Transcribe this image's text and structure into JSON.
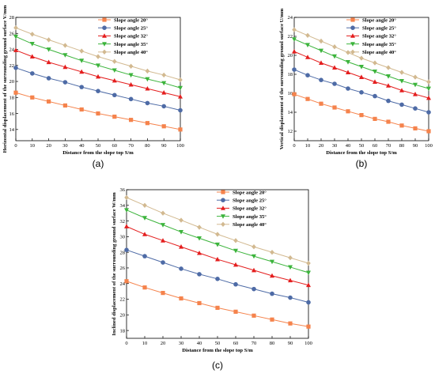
{
  "colors": {
    "slope20": "#F5834C",
    "slope25": "#4E6BA6",
    "slope32": "#E41E1E",
    "slope35": "#3CB43C",
    "slope40": "#D2B990"
  },
  "chart_data": [
    {
      "panel_label": "(a)",
      "type": "line",
      "xlabel": "Distance from the slope top S/m",
      "ylabel": "Horizontal displacement of the surrounding ground surface V/mm",
      "xlim": [
        0,
        100
      ],
      "ylim": [
        12.6,
        28
      ],
      "xticks": [
        "0",
        "10",
        "20",
        "30",
        "40",
        "50",
        "60",
        "70",
        "80",
        "90",
        "100"
      ],
      "yticks": [
        "14",
        "16",
        "18",
        "20",
        "22",
        "24",
        "26",
        "28"
      ],
      "grid": false,
      "legend_position": "top-right",
      "x": [
        0,
        10,
        20,
        30,
        40,
        50,
        60,
        70,
        80,
        90,
        100
      ],
      "series": [
        {
          "name": "Slope angle 20°",
          "marker": "square",
          "values": [
            18.6,
            18.0,
            17.5,
            17.0,
            16.5,
            16.0,
            15.6,
            15.2,
            14.8,
            14.4,
            14.0
          ]
        },
        {
          "name": "Slope angle 25°",
          "marker": "circle",
          "values": [
            21.7,
            21.0,
            20.4,
            19.9,
            19.3,
            18.8,
            18.3,
            17.8,
            17.3,
            16.9,
            16.4
          ]
        },
        {
          "name": "Slope angle 32°",
          "marker": "triangle-up",
          "values": [
            23.9,
            23.1,
            22.4,
            21.8,
            21.2,
            20.6,
            20.1,
            19.6,
            19.1,
            18.6,
            18.1
          ]
        },
        {
          "name": "Slope angle 35°",
          "marker": "triangle-down",
          "values": [
            25.6,
            24.7,
            24.0,
            23.3,
            22.6,
            22.0,
            21.4,
            20.8,
            20.3,
            19.8,
            19.2
          ]
        },
        {
          "name": "Slope angle 40°",
          "marker": "diamond",
          "values": [
            26.7,
            25.9,
            25.2,
            24.5,
            23.8,
            23.1,
            22.5,
            21.9,
            21.3,
            20.8,
            20.2
          ]
        }
      ]
    },
    {
      "panel_label": "(b)",
      "type": "line",
      "xlabel": "Distance from the slope top S/m",
      "ylabel": "Vertical displacement of the surrounding ground surface U/mm",
      "xlim": [
        0,
        100
      ],
      "ylim": [
        11,
        24
      ],
      "xticks": [
        "0",
        "10",
        "20",
        "30",
        "40",
        "50",
        "60",
        "70",
        "80",
        "90",
        "100"
      ],
      "yticks": [
        "12",
        "14",
        "16",
        "18",
        "20",
        "22",
        "24"
      ],
      "grid": false,
      "legend_position": "top-right",
      "x": [
        0,
        10,
        20,
        30,
        40,
        50,
        60,
        70,
        80,
        90,
        100
      ],
      "series": [
        {
          "name": "Slope angle 20°",
          "marker": "square",
          "values": [
            15.9,
            15.4,
            14.9,
            14.5,
            14.1,
            13.7,
            13.3,
            13.0,
            12.6,
            12.3,
            12.0
          ]
        },
        {
          "name": "Slope angle 25°",
          "marker": "circle",
          "values": [
            18.5,
            17.9,
            17.4,
            17.0,
            16.5,
            16.1,
            15.7,
            15.2,
            14.8,
            14.4,
            14.0
          ]
        },
        {
          "name": "Slope angle 32°",
          "marker": "triangle-up",
          "values": [
            20.4,
            19.8,
            19.2,
            18.7,
            18.2,
            17.7,
            17.2,
            16.8,
            16.3,
            15.9,
            15.5
          ]
        },
        {
          "name": "Slope angle 35°",
          "marker": "triangle-down",
          "values": [
            21.7,
            21.1,
            20.5,
            19.9,
            19.3,
            18.8,
            18.3,
            17.8,
            17.3,
            16.9,
            16.5
          ]
        },
        {
          "name": "Slope angle 40°",
          "marker": "diamond",
          "values": [
            22.7,
            22.1,
            21.5,
            20.9,
            20.3,
            19.7,
            19.2,
            18.7,
            18.2,
            17.7,
            17.2
          ]
        }
      ]
    },
    {
      "panel_label": "(c)",
      "type": "line",
      "xlabel": "Distance from the slope top S/m",
      "ylabel": "Inclined displacement of the surrounding ground surface W/mm",
      "xlim": [
        0,
        100
      ],
      "ylim": [
        17,
        36
      ],
      "xticks": [
        "0",
        "10",
        "20",
        "30",
        "40",
        "50",
        "60",
        "70",
        "80",
        "90",
        "100"
      ],
      "yticks": [
        "18",
        "20",
        "22",
        "24",
        "26",
        "28",
        "30",
        "32",
        "34",
        "36"
      ],
      "grid": false,
      "legend_position": "top-right",
      "x": [
        0,
        10,
        20,
        30,
        40,
        50,
        60,
        70,
        80,
        90,
        100
      ],
      "series": [
        {
          "name": "Slope angle 20°",
          "marker": "square",
          "values": [
            24.3,
            23.5,
            22.8,
            22.1,
            21.5,
            20.9,
            20.4,
            19.9,
            19.4,
            18.9,
            18.5
          ]
        },
        {
          "name": "Slope angle 25°",
          "marker": "circle",
          "values": [
            28.3,
            27.5,
            26.7,
            25.9,
            25.2,
            24.6,
            23.9,
            23.3,
            22.7,
            22.2,
            21.6
          ]
        },
        {
          "name": "Slope angle 32°",
          "marker": "triangle-up",
          "values": [
            31.3,
            30.3,
            29.5,
            28.7,
            27.9,
            27.1,
            26.4,
            25.7,
            25.0,
            24.4,
            23.8
          ]
        },
        {
          "name": "Slope angle 35°",
          "marker": "triangle-down",
          "values": [
            33.4,
            32.4,
            31.5,
            30.6,
            29.8,
            29.0,
            28.2,
            27.5,
            26.8,
            26.1,
            25.4
          ]
        },
        {
          "name": "Slope angle 40°",
          "marker": "diamond",
          "values": [
            35.0,
            34.0,
            33.0,
            32.1,
            31.2,
            30.3,
            29.5,
            28.7,
            28.0,
            27.3,
            26.6
          ]
        }
      ]
    }
  ]
}
